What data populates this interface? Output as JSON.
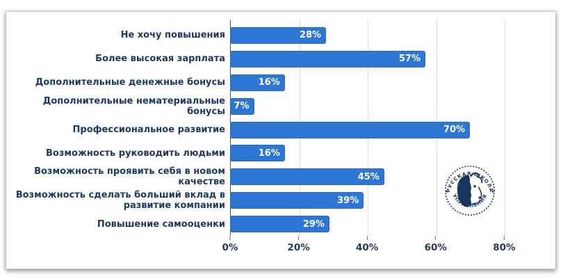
{
  "chart_data": {
    "type": "bar",
    "orientation": "horizontal",
    "title": "",
    "categories": [
      "Не хочу повышения",
      "Более высокая зарплата",
      "Дополнительные денежные бонусы",
      "Дополнительные нематериальные бонусы",
      "Профессиональное развитие",
      "Возможность руководить людьми",
      "Возможность проявить себя в новом качестве",
      "Возможность сделать больший вклад в развитие компании",
      "Повышение самооценки"
    ],
    "values": [
      28,
      57,
      16,
      7,
      70,
      16,
      45,
      39,
      29
    ],
    "value_labels": [
      "28%",
      "57%",
      "16%",
      "7%",
      "70%",
      "16%",
      "45%",
      "39%",
      "29%"
    ],
    "x_ticks": [
      {
        "label": "0%",
        "value": 0
      },
      {
        "label": "20%",
        "value": 20
      },
      {
        "label": "40%",
        "value": 40
      },
      {
        "label": "60%",
        "value": 60
      },
      {
        "label": "80%",
        "value": 80
      }
    ],
    "xlim": [
      0,
      93
    ],
    "grid": true,
    "legend": false,
    "bar_color": "#2E76D3",
    "bar_border_color": "#2A67C0",
    "label_color": "#1F3864",
    "grid_color": "#D9D9D9"
  },
  "logo": {
    "name": "Русская Школа Управления",
    "arc_text_top": "РУССКАЯ ШКОЛА",
    "arc_text_bottom": "УПРАВЛЕНИЯ",
    "color": "#17365D"
  }
}
